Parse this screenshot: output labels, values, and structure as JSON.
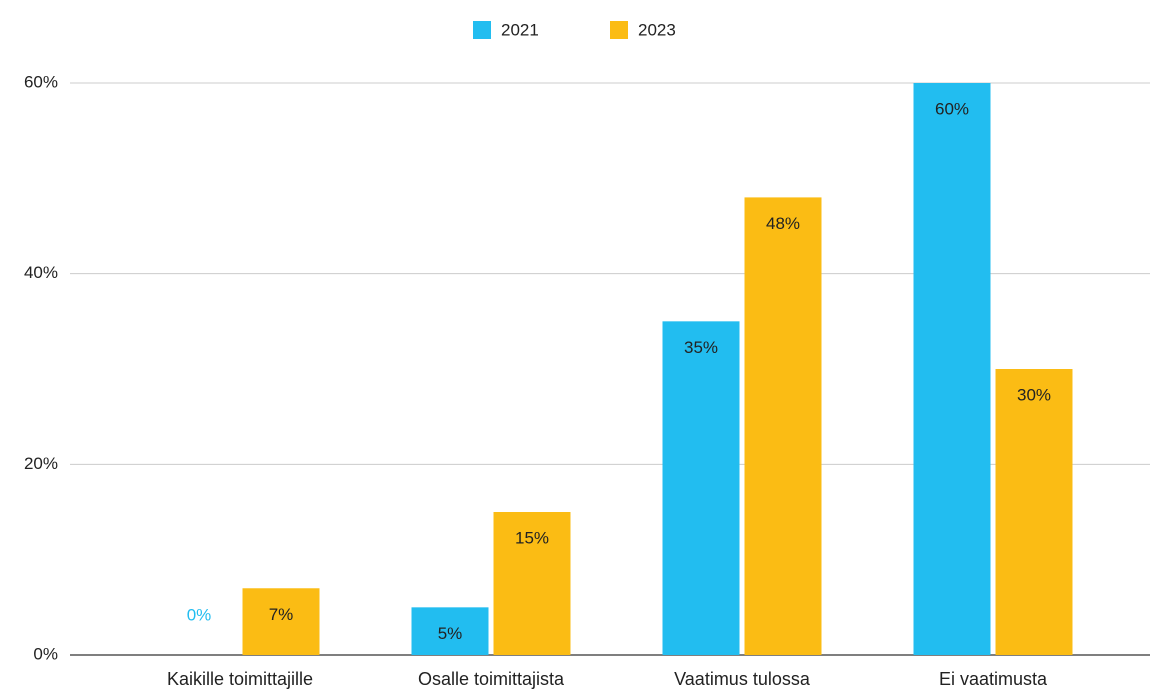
{
  "chart_data": {
    "type": "bar",
    "categories": [
      "Kaikille toimittajille",
      "Osalle toimittajista",
      "Vaatimus tulossa",
      "Ei vaatimusta"
    ],
    "series": [
      {
        "name": "2021",
        "color": "#22bdf0",
        "values": [
          0,
          5,
          35,
          60
        ],
        "value_labels": [
          "0%",
          "5%",
          "35%",
          "60%"
        ]
      },
      {
        "name": "2023",
        "color": "#fbbc14",
        "values": [
          7,
          15,
          48,
          30
        ],
        "value_labels": [
          "7%",
          "15%",
          "48%",
          "30%"
        ]
      }
    ],
    "ylim": [
      0,
      60
    ],
    "yticks": [
      {
        "value": 0,
        "label": "0%"
      },
      {
        "value": 20,
        "label": "20%"
      },
      {
        "value": 40,
        "label": "40%"
      },
      {
        "value": 60,
        "label": "60%"
      }
    ],
    "grid": true,
    "legend": "top"
  }
}
